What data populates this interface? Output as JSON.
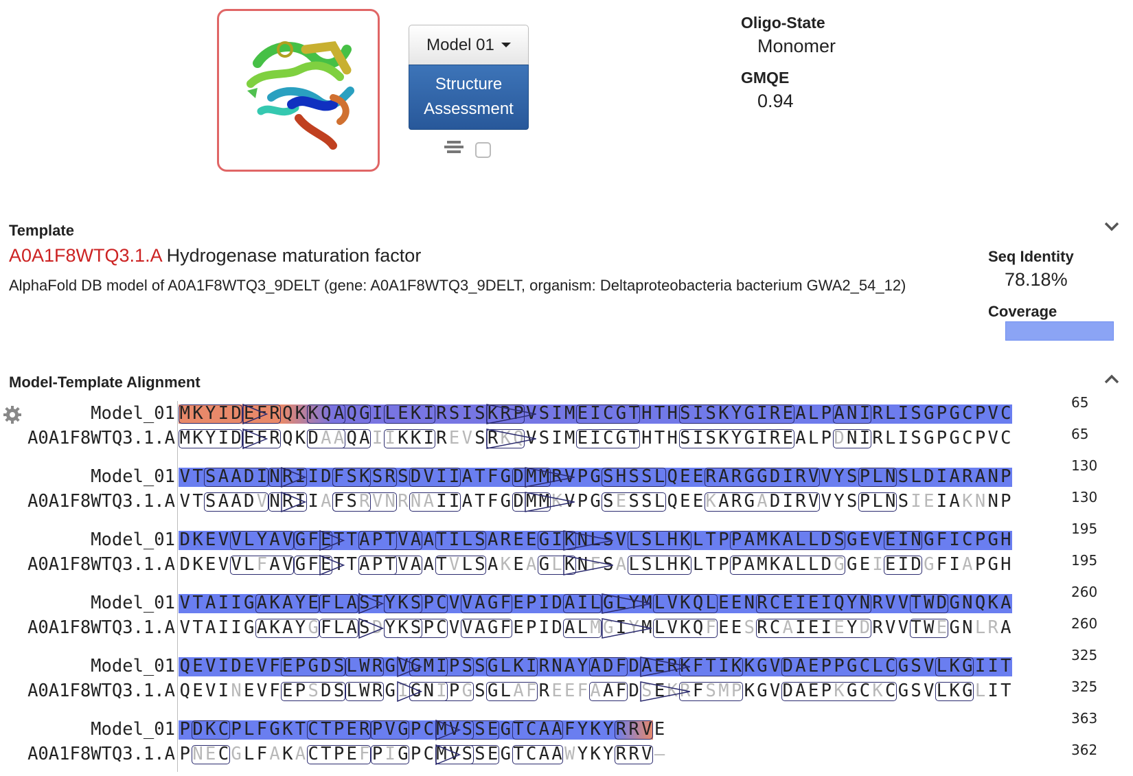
{
  "model_selector": {
    "label": "Model 01"
  },
  "structure_assessment": {
    "line1": "Structure",
    "line2": "Assessment"
  },
  "properties": {
    "oligo_state_label": "Oligo-State",
    "oligo_state_value": "Monomer",
    "gmqe_label": "GMQE",
    "gmqe_value": "0.94"
  },
  "template": {
    "section_label": "Template",
    "id": "A0A1F8WTQ3.1.A",
    "name": "Hydrogenase maturation factor",
    "description": "AlphaFold DB model of A0A1F8WTQ3_9DELT (gene: A0A1F8WTQ3_9DELT, organism: Deltaproteobacteria bacterium GWA2_54_12)",
    "seq_identity_label": "Seq Identity",
    "seq_identity_value": "78.18%",
    "coverage_label": "Coverage",
    "coverage": 1.0
  },
  "alignment": {
    "section_label": "Model-Template Alignment",
    "blocks": [
      {
        "model_label": "Model_01",
        "template_label": "A0A1F8WTQ3.1.A",
        "model_seq": "MKYIDEFRQKKQAQGILEKIRSISKRPVSIMEICGTHTHSISKYGIREALPANIRLISGPGCPVC",
        "template_seq": "MKYIDEFRQKDAAQAIIKKIREVSRKQVSIMEICGTHTHSISKYGIREALPDNIRLISGPGCPVC",
        "template_dim": [
          11,
          12,
          15,
          16,
          21,
          22,
          25,
          26,
          51
        ],
        "model_end": "65",
        "template_end": "65"
      },
      {
        "model_label": "Model_01",
        "template_label": "A0A1F8WTQ3.1.A",
        "model_seq": "VTSAADINRIIDFSKSRSDVIIATFGDMMRVPGSHSSLQEERARGGDIRVVYSPLNSLDIARANP",
        "template_seq": "VTSAADVNRIIAFSRVNRNAIIATFGDMMKVPGSESSLQEEKARGADIRVVYSPLNSIEIAKNNP",
        "template_dim": [
          6,
          11,
          14,
          15,
          16,
          17,
          18,
          19,
          29,
          34,
          41,
          45,
          57,
          58,
          61,
          62
        ],
        "model_end": "130",
        "template_end": "130"
      },
      {
        "model_label": "Model_01",
        "template_label": "A0A1F8WTQ3.1.A",
        "model_seq": "DKEVVLYAVGFETTAPTVAATILSAREEGIKNLSVLSLHKLTPPAMKALLDSGEVEINGFICPGH",
        "template_seq": "DKEVVLFAVGFETTAPTVAATVLSAKEAGLKNFSALSLHKLTPPAMKALLDGGEIEIDGFIAPGH",
        "template_dim": [
          6,
          21,
          25,
          27,
          29,
          32,
          34,
          51,
          54,
          58,
          61
        ],
        "model_end": "195",
        "template_end": "195"
      },
      {
        "model_label": "Model_01",
        "template_label": "A0A1F8WTQ3.1.A",
        "model_seq": "VTAIIGAKAYEFLASTYKSPCVVAGFEPIDAILGLYMLVKQLEENRCEIEIQYNRVVTWDGNQKA",
        "template_seq": "VTAIIGAKAYGFLASDYKSPCVVAGFEPIDALMGIYMLVKQFEESRCAIEIEYDRVVTWEGNLRA",
        "template_dim": [
          10,
          15,
          32,
          33,
          35,
          41,
          44,
          47,
          51,
          53,
          59,
          62,
          63
        ],
        "model_end": "260",
        "template_end": "260"
      },
      {
        "model_label": "Model_01",
        "template_label": "A0A1F8WTQ3.1.A",
        "model_seq": "QEVIDEVFEPGDSLWRGVGMIPSSGLKIRNAYADFDAERKFTIKKGVDAEPPGCLCGSVLKGIIT",
        "template_seq": "QEVINEVFEPSDSLWRGIGNIPGSGLAFREEFAAFDSEKRFSMPKGVDAEPKGCKCGSVLKGLIT",
        "template_dim": [
          4,
          10,
          17,
          20,
          22,
          26,
          27,
          29,
          30,
          31,
          32,
          36,
          38,
          39,
          41,
          42,
          43,
          51,
          54,
          62
        ],
        "model_end": "325",
        "template_end": "325"
      },
      {
        "model_label": "Model_01",
        "template_label": "A0A1F8WTQ3.1.A",
        "model_seq": "PDKCPLFGKTCTPERPVGPCMVSSEGTCAAFYKYRRVE",
        "template_seq": "PNECGLFAKACTPEFPIGPCMVSSEGTCAAWYKYRRV-",
        "template_dim": [
          1,
          2,
          4,
          7,
          9,
          14,
          16,
          30,
          37
        ],
        "model_end": "363",
        "template_end": "362"
      }
    ]
  }
}
